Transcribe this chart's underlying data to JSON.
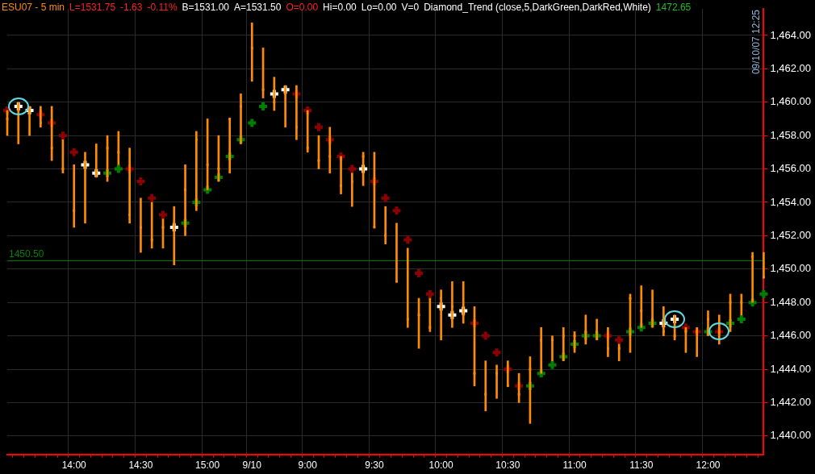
{
  "chart_data": {
    "type": "bar",
    "title": "ESU07 - 5 min",
    "annotations": [
      "L=1531.75",
      "-1.63",
      "-0.11%",
      "B=1531.00",
      "A=1531.50",
      "O=0.00",
      "Hi=0.00",
      "Lo=0.00",
      "V=0",
      "Diamond_Trend (close,5,DarkGreen,DarkRed,White)",
      "1472.65",
      "09/10/07 12:25"
    ],
    "categories": [
      null,
      null,
      null,
      null,
      null,
      null,
      "14:00",
      null,
      null,
      null,
      null,
      null,
      "14:30",
      null,
      null,
      null,
      null,
      null,
      "15:00",
      null,
      null,
      null,
      "9/10",
      null,
      null,
      null,
      null,
      "9:00",
      null,
      null,
      null,
      null,
      null,
      "9:30",
      null,
      null,
      null,
      null,
      null,
      "10:00",
      null,
      null,
      null,
      null,
      null,
      "10:30",
      null,
      null,
      null,
      null,
      null,
      "11:00",
      null,
      null,
      null,
      null,
      null,
      "11:30",
      null,
      null,
      null,
      null,
      null,
      "12:00",
      null,
      null,
      null,
      null,
      null
    ],
    "series": [
      {
        "type": "bar",
        "color": "#ff8c00",
        "base": [
          1458,
          1457.5,
          1458,
          1458.5,
          1456.5,
          1455.75,
          1452.5,
          1452.75,
          1455.5,
          1455.25,
          1456.25,
          1452.75,
          1451,
          1451.25,
          1451.25,
          1450.25,
          1452,
          1453.5,
          1454.75,
          1455.25,
          1455.75,
          1457.5,
          1461.25,
          1460.25,
          1459.5,
          1458.5,
          1457.75,
          1457,
          1456,
          1455.75,
          1454.5,
          1453.75,
          1455,
          1452.5,
          1451.5,
          1449.25,
          1446.5,
          1445.25,
          1446.25,
          1445.75,
          1446.5,
          1446.75,
          1443,
          1441.5,
          1442.25,
          1443,
          1442,
          1440.75,
          1443.75,
          1444.5,
          1444.5,
          1445,
          1445.5,
          1445.75,
          1444.75,
          1444.5,
          1445,
          1446.5,
          1446.5,
          1446,
          1445.75,
          1445,
          1444.75,
          1446,
          1445.5,
          1446.25,
          1447.25,
          1448,
          1449.5
        ],
        "values": [
          1.5,
          2.5,
          1.75,
          1.25,
          3.25,
          2,
          3.75,
          4.25,
          2,
          2.75,
          2,
          4.5,
          3.25,
          2.75,
          1.75,
          3.5,
          4.25,
          4.75,
          4.25,
          2.75,
          3.25,
          3,
          3.5,
          3,
          2,
          2.5,
          3.25,
          2.5,
          2,
          2.75,
          2.25,
          2,
          2,
          4.5,
          2.25,
          3.5,
          4.75,
          3,
          2,
          3,
          2.75,
          2.5,
          4.75,
          3,
          2,
          1.5,
          1.75,
          4,
          2.75,
          1.5,
          2,
          1.25,
          1.75,
          1.25,
          1.75,
          1,
          3.5,
          2.5,
          2.25,
          1.75,
          1.5,
          1.5,
          1.75,
          1.5,
          1.75,
          2.25,
          1.25,
          3,
          1.5
        ]
      },
      {
        "type": "scatter",
        "color": "#ff8c00",
        "marker": "square",
        "values": [
          1459,
          1459.75,
          1459.5,
          1458.75,
          1457.25,
          1456,
          1453.5,
          1456.25,
          1455.75,
          1457.25,
          1457,
          1453.25,
          1452.5,
          1451.75,
          1452.5,
          1452.75,
          1454.75,
          1457.75,
          1456.25,
          1456,
          1459,
          1459.75,
          1463.25,
          1460.75,
          1460,
          1460.5,
          1458.5,
          1457.25,
          1456.5,
          1456.75,
          1455,
          1455.25,
          1456.75,
          1452.5,
          1452,
          1449.25,
          1447,
          1447.25,
          1446.5,
          1448.25,
          1447.75,
          1447.25,
          1443.75,
          1442.5,
          1443.75,
          1443,
          1442.5,
          1444,
          1445.75,
          1445.75,
          1446,
          1446,
          1446.25,
          1446.25,
          1445.25,
          1445.25,
          1448.25,
          1447.5,
          1447,
          1446.25,
          1446,
          1446.25,
          1446.25,
          1447,
          1446.25,
          1448,
          1448,
          1450.75,
          1449.5
        ]
      },
      {
        "type": "scatter",
        "values": [
          1459.5,
          1459.75,
          1459.5,
          1459.25,
          1458.75,
          1458,
          1457,
          1456.25,
          1455.75,
          1455.75,
          1456,
          1456,
          1455.25,
          1454.25,
          1453.25,
          1452.5,
          1452.75,
          1454,
          1454.75,
          1455.5,
          1456.75,
          1457.75,
          1458.75,
          1459.75,
          1460.5,
          1460.75,
          1460.5,
          1459.5,
          1458.5,
          1457.75,
          1456.75,
          1456,
          1456,
          1455.25,
          1454.25,
          1453.5,
          1451.75,
          1449.75,
          1448.5,
          1447.75,
          1447.25,
          1447.5,
          1446.75,
          1446,
          1445,
          1444,
          1443,
          1443,
          1443.75,
          1444.25,
          1444.75,
          1445.5,
          1446,
          1446,
          1446,
          1445.75,
          1446.25,
          1446.5,
          1446.75,
          1446.75,
          1447,
          1446.5,
          1446.25,
          1446.25,
          1446.25,
          1446.75,
          1447,
          1448,
          1448.5
        ],
        "colors": [
          "#8b0000",
          "#ffffff",
          "#ffffff",
          "#8b0000",
          "#8b0000",
          "#8b0000",
          "#8b0000",
          "#ffffff",
          "#ffffff",
          "#008000",
          "#008000",
          "#8b0000",
          "#8b0000",
          "#8b0000",
          "#8b0000",
          "#ffffff",
          "#008000",
          "#008000",
          "#008000",
          "#008000",
          "#008000",
          "#008000",
          "#008000",
          "#008000",
          "#ffffff",
          "#ffffff",
          "#8b0000",
          "#8b0000",
          "#8b0000",
          "#8b0000",
          "#8b0000",
          "#8b0000",
          "#ffffff",
          "#8b0000",
          "#8b0000",
          "#8b0000",
          "#8b0000",
          "#8b0000",
          "#8b0000",
          "#ffffff",
          "#ffffff",
          "#ffffff",
          "#8b0000",
          "#8b0000",
          "#8b0000",
          "#8b0000",
          "#8b0000",
          "#008000",
          "#008000",
          "#008000",
          "#008000",
          "#008000",
          "#008000",
          "#008000",
          "#8b0000",
          "#8b0000",
          "#008000",
          "#008000",
          "#008000",
          "#ffffff",
          "#ffffff",
          "#8b0000",
          "#8b0000",
          "#008000",
          "#8b0000",
          "#008000",
          "#008000",
          "#008000",
          "#008000"
        ]
      }
    ],
    "marker": "cross",
    "ylim": [
      1438.9,
      1465.6
    ],
    "yticks": [
      {
        "value": 1440,
        "label": "1,440.00"
      },
      {
        "value": 1442,
        "label": "1,442.00"
      },
      {
        "value": 1444,
        "label": "1,444.00"
      },
      {
        "value": 1446,
        "label": "1,446.00"
      },
      {
        "value": 1448,
        "label": "1,448.00"
      },
      {
        "value": 1450,
        "label": "1,450.00"
      },
      {
        "value": 1452,
        "label": "1,452.00"
      },
      {
        "value": 1454,
        "label": "1,454.00"
      },
      {
        "value": 1456,
        "label": "1,456.00"
      },
      {
        "value": 1458,
        "label": "1,458.00"
      },
      {
        "value": 1460,
        "label": "1,460.00"
      },
      {
        "value": 1462,
        "label": "1,462.00"
      },
      {
        "value": 1464,
        "label": "1,464.00"
      }
    ],
    "grid": true,
    "ref_lines": [
      {
        "axis": "y",
        "value": 1450.5,
        "label": "1450.50",
        "color": "#008000"
      }
    ]
  }
}
